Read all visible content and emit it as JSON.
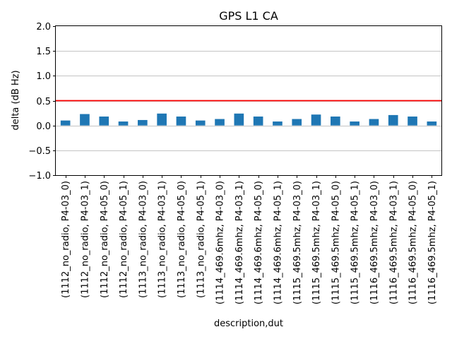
{
  "chart_data": {
    "type": "bar",
    "title": "GPS L1 CA",
    "xlabel": "description,dut",
    "ylabel": "delta (dB Hz)",
    "ylim": [
      -1.0,
      2.0
    ],
    "yticks": [
      -1.0,
      -0.5,
      0.0,
      0.5,
      1.0,
      1.5,
      2.0
    ],
    "ytick_labels": [
      "−1.0",
      "−0.5",
      "0.0",
      "0.5",
      "1.0",
      "1.5",
      "2.0"
    ],
    "grid": "y",
    "threshold_line": {
      "value": 0.5,
      "color": "#ff0000"
    },
    "bar_color": "#1f77b4",
    "categories": [
      "(1112_no_radio, P4-03_0)",
      "(1112_no_radio, P4-03_1)",
      "(1112_no_radio, P4-05_0)",
      "(1112_no_radio, P4-05_1)",
      "(1113_no_radio, P4-03_0)",
      "(1113_no_radio, P4-03_1)",
      "(1113_no_radio, P4-05_0)",
      "(1113_no_radio, P4-05_1)",
      "(1114_469.6mhz, P4-03_0)",
      "(1114_469.6mhz, P4-03_1)",
      "(1114_469.6mhz, P4-05_0)",
      "(1114_469.6mhz, P4-05_1)",
      "(1115_469.5mhz, P4-03_0)",
      "(1115_469.5mhz, P4-03_1)",
      "(1115_469.5mhz, P4-05_0)",
      "(1115_469.5mhz, P4-05_1)",
      "(1116_469.5mhz, P4-03_0)",
      "(1116_469.5mhz, P4-03_1)",
      "(1116_469.5mhz, P4-05_0)",
      "(1116_469.5mhz, P4-05_1)"
    ],
    "values": [
      0.1,
      0.23,
      0.18,
      0.08,
      0.11,
      0.24,
      0.18,
      0.1,
      0.13,
      0.24,
      0.18,
      0.08,
      0.13,
      0.22,
      0.18,
      0.08,
      0.13,
      0.21,
      0.18,
      0.08
    ]
  }
}
